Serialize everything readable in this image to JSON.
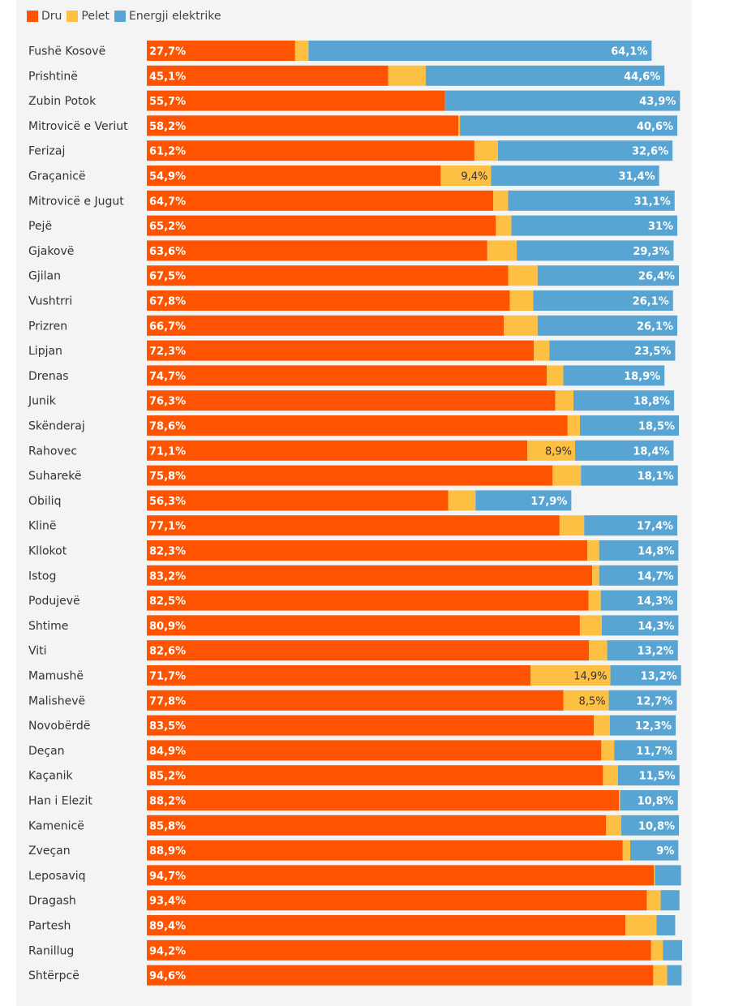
{
  "colors": {
    "dru": "#fe5300",
    "pelet": "#fec042",
    "energji": "#58a5d3",
    "background": "#f4f4f4"
  },
  "chart_data": {
    "type": "bar",
    "orientation": "horizontal",
    "stacked": true,
    "title": "",
    "xlabel": "",
    "ylabel": "",
    "xlim": [
      0,
      100
    ],
    "legend": [
      "Dru",
      "Pelet",
      "Energji elektrike"
    ],
    "legend_position": "top-left",
    "categories": [
      "Fushë Kosovë",
      "Prishtinë",
      "Zubin Potok",
      "Mitrovicë e Veriut",
      "Ferizaj",
      "Graçanicë",
      "Mitrovicë e Jugut",
      "Pejë",
      "Gjakovë",
      "Gjilan",
      "Vushtrri",
      "Prizren",
      "Lipjan",
      "Drenas",
      "Junik",
      "Skënderaj",
      "Rahovec",
      "Suharekë",
      "Obiliq",
      "Klinë",
      "Kllokot",
      "Istog",
      "Podujevë",
      "Shtime",
      "Viti",
      "Mamushë",
      "Malishevë",
      "Novobërdë",
      "Deçan",
      "Kaçanik",
      "Han i Elezit",
      "Kamenicë",
      "Zveçan",
      "Leposaviq",
      "Dragash",
      "Partesh",
      "Ranillug",
      "Shtërpcë"
    ],
    "series": [
      {
        "name": "Dru",
        "values": [
          27.7,
          45.1,
          55.7,
          58.2,
          61.2,
          54.9,
          64.7,
          65.2,
          63.6,
          67.5,
          67.8,
          66.7,
          72.3,
          74.7,
          76.3,
          78.6,
          71.1,
          75.8,
          56.3,
          77.1,
          82.3,
          83.2,
          82.5,
          80.9,
          82.6,
          71.7,
          77.8,
          83.5,
          84.9,
          85.2,
          88.2,
          85.8,
          88.9,
          94.7,
          93.4,
          89.4,
          94.2,
          94.6
        ]
      },
      {
        "name": "Pelet",
        "values": [
          2.5,
          7.0,
          0.0,
          0.3,
          4.4,
          9.4,
          2.8,
          2.9,
          5.5,
          5.5,
          4.4,
          6.3,
          2.9,
          3.1,
          3.4,
          2.3,
          8.9,
          5.3,
          5.1,
          4.6,
          2.2,
          1.3,
          2.3,
          4.1,
          3.4,
          14.9,
          8.5,
          3.0,
          2.4,
          2.8,
          0.2,
          2.8,
          1.4,
          0.2,
          2.6,
          5.8,
          2.2,
          2.6
        ]
      },
      {
        "name": "Energji elektrike",
        "values": [
          64.1,
          44.6,
          43.9,
          40.6,
          32.6,
          31.4,
          31.1,
          31,
          29.3,
          26.4,
          26.1,
          26.1,
          23.5,
          18.9,
          18.8,
          18.5,
          18.4,
          18.1,
          17.9,
          17.4,
          14.8,
          14.7,
          14.3,
          14.3,
          13.2,
          13.2,
          12.7,
          12.3,
          11.7,
          11.5,
          10.8,
          10.8,
          9,
          4.9,
          3.5,
          3.5,
          3.6,
          2.7
        ]
      }
    ],
    "labels": {
      "dru": [
        "27,7%",
        "45,1%",
        "55,7%",
        "58,2%",
        "61,2%",
        "54,9%",
        "64,7%",
        "65,2%",
        "63,6%",
        "67,5%",
        "67,8%",
        "66,7%",
        "72,3%",
        "74,7%",
        "76,3%",
        "78,6%",
        "71,1%",
        "75,8%",
        "56,3%",
        "77,1%",
        "82,3%",
        "83,2%",
        "82,5%",
        "80,9%",
        "82,6%",
        "71,7%",
        "77,8%",
        "83,5%",
        "84,9%",
        "85,2%",
        "88,2%",
        "85,8%",
        "88,9%",
        "94,7%",
        "93,4%",
        "89,4%",
        "94,2%",
        "94,6%"
      ],
      "pelet": [
        "",
        "",
        "",
        "",
        "",
        "9,4%",
        "",
        "",
        "",
        "",
        "",
        "",
        "",
        "",
        "",
        "",
        "8,9%",
        "",
        "",
        "",
        "",
        "",
        "",
        "",
        "",
        "14,9%",
        "8,5%",
        "",
        "",
        "",
        "",
        "",
        "",
        "",
        "",
        "",
        "",
        ""
      ],
      "energji": [
        "64,1%",
        "44,6%",
        "43,9%",
        "40,6%",
        "32,6%",
        "31,4%",
        "31,1%",
        "31%",
        "29,3%",
        "26,4%",
        "26,1%",
        "26,1%",
        "23,5%",
        "18,9%",
        "18,8%",
        "18,5%",
        "18,4%",
        "18,1%",
        "17,9%",
        "17,4%",
        "14,8%",
        "14,7%",
        "14,3%",
        "14,3%",
        "13,2%",
        "13,2%",
        "12,7%",
        "12,3%",
        "11,7%",
        "11,5%",
        "10,8%",
        "10,8%",
        "9%",
        "",
        "",
        "",
        "",
        ""
      ]
    }
  }
}
